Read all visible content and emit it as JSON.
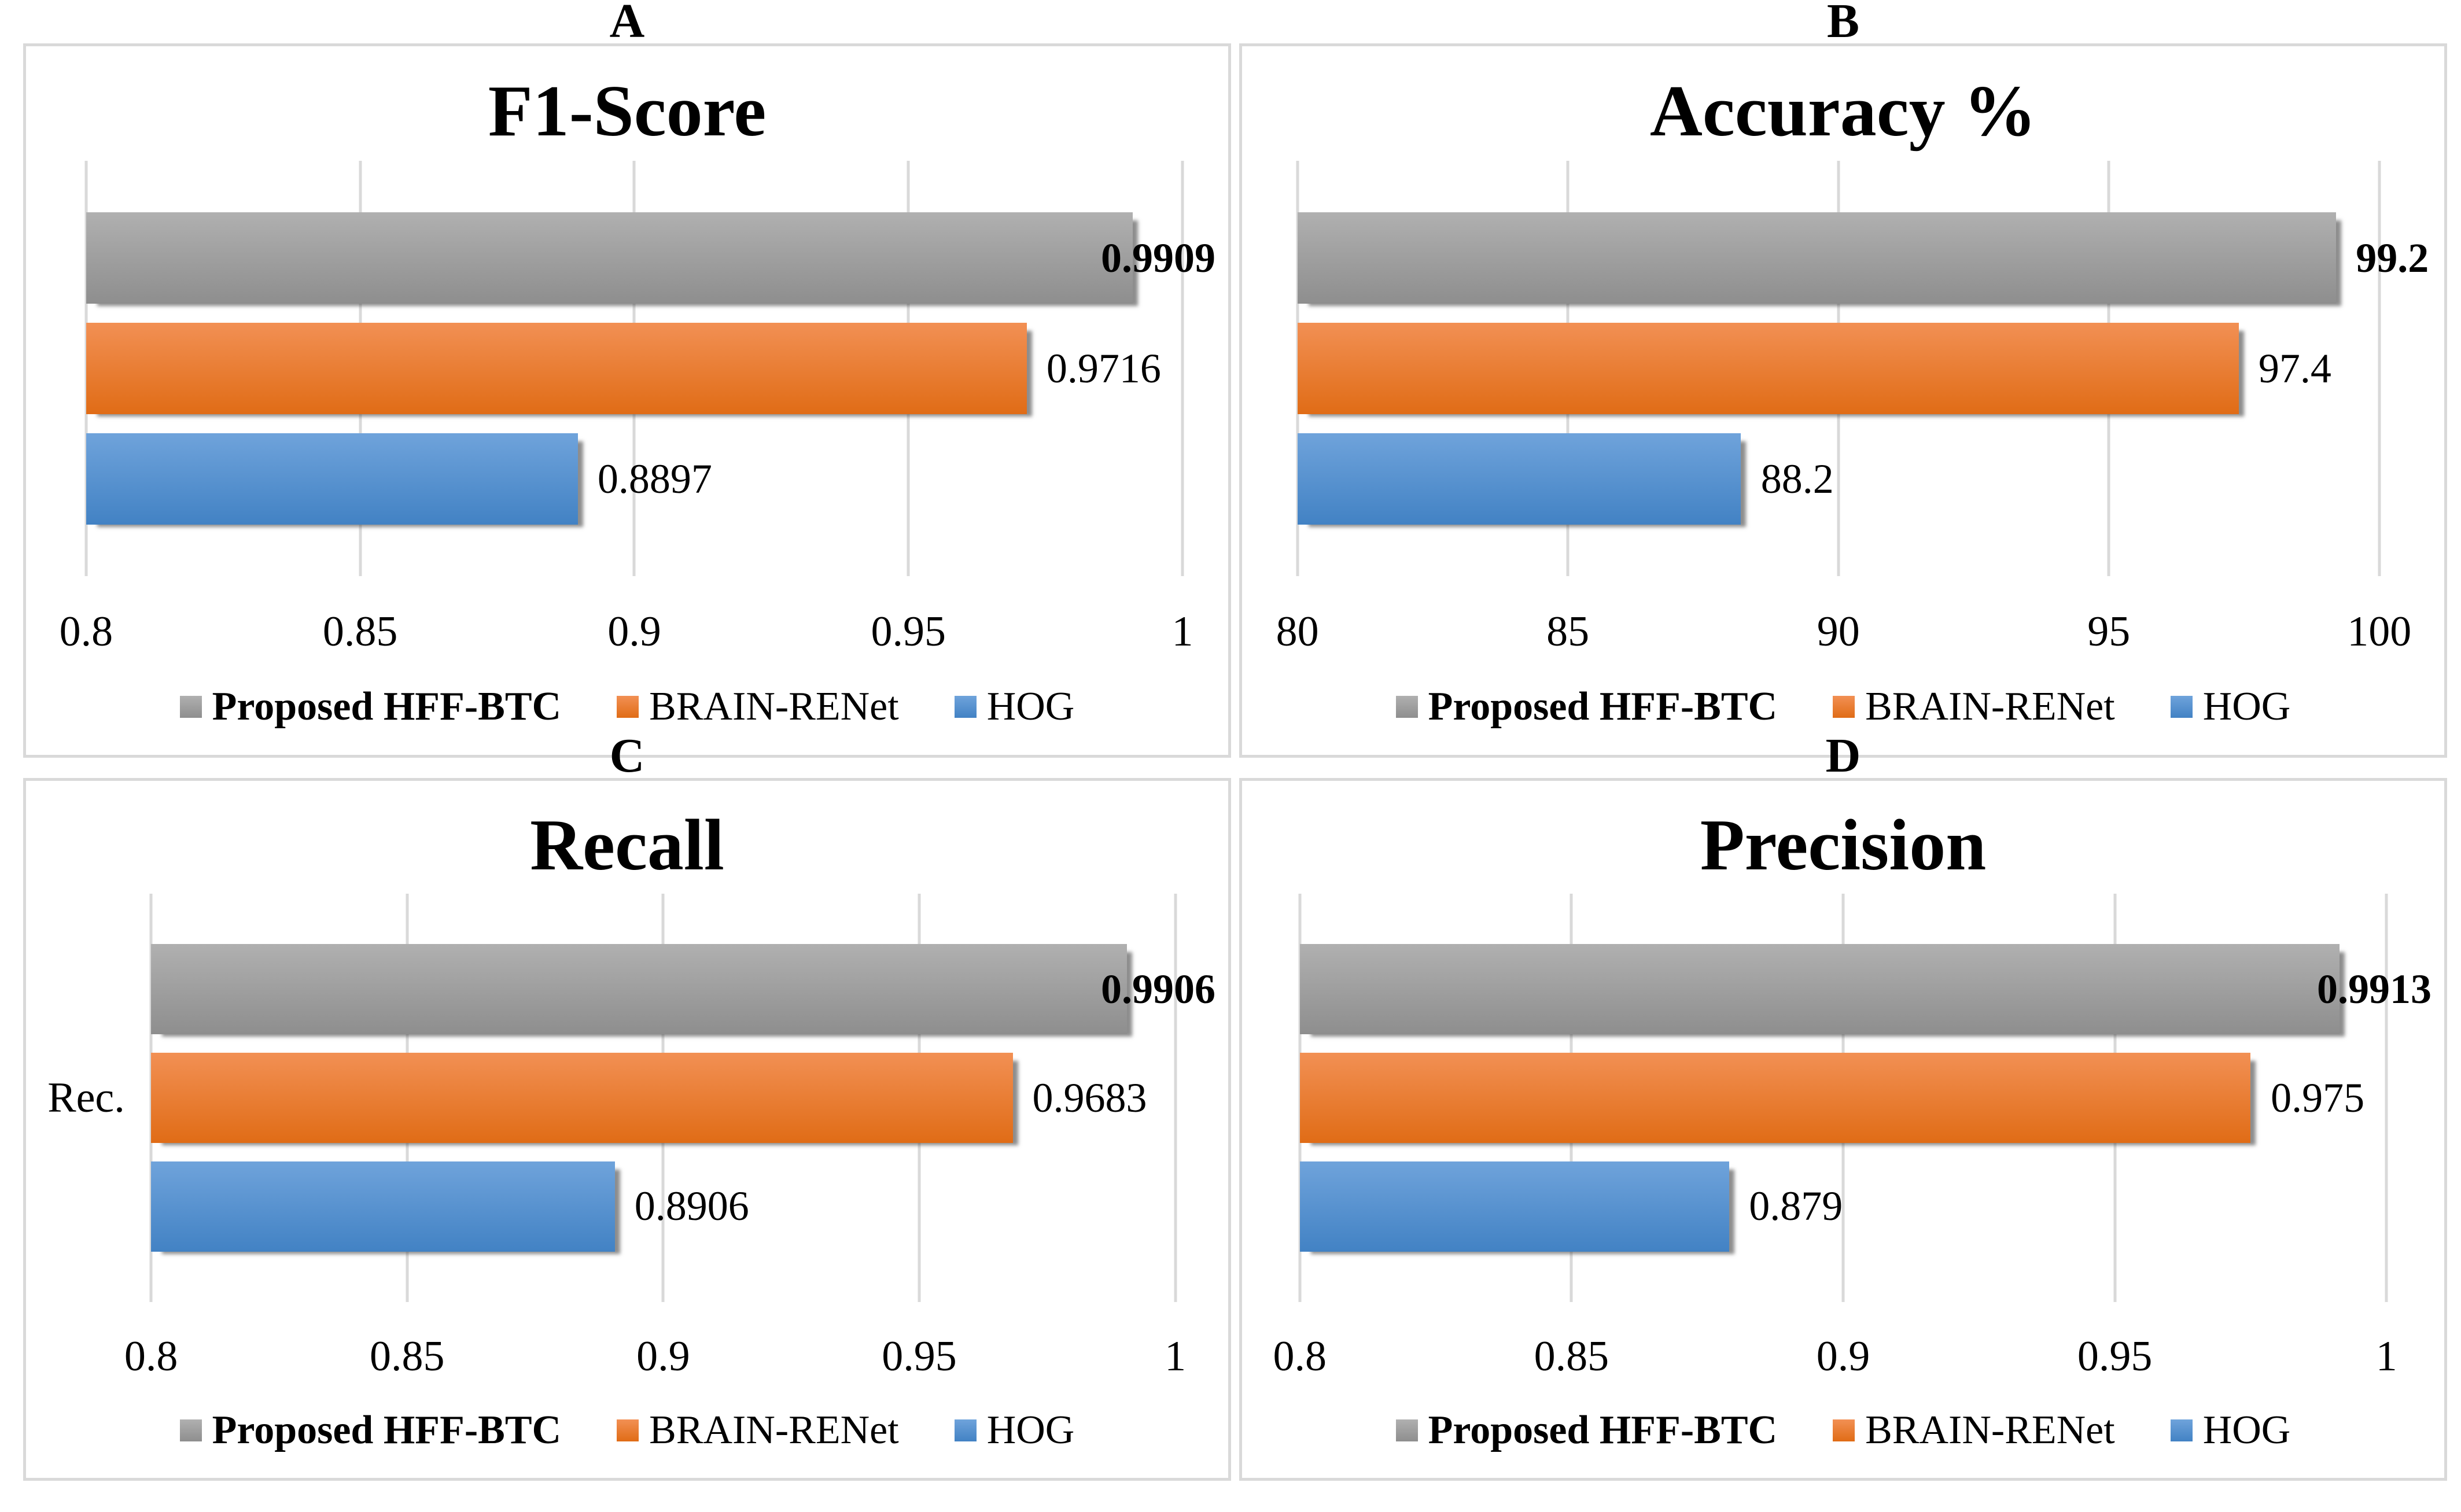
{
  "style": {
    "series": [
      {
        "name": "Proposed HFF-BTC",
        "color_top": "#b0b0b0",
        "color_bottom": "#8e8e8e"
      },
      {
        "name": "BRAIN-RENet",
        "color_top": "#f29054",
        "color_bottom": "#e06c16"
      },
      {
        "name": "HOG",
        "color_top": "#6fa3db",
        "color_bottom": "#4282c4"
      }
    ],
    "grid_color": "#d9d9d9",
    "panel_border_color": "#d9d9d9",
    "background": "#ffffff",
    "text_color": "#000000"
  },
  "chart_data": [
    {
      "panel_label": "A",
      "type": "bar",
      "orientation": "horizontal",
      "title": "F1-Score",
      "categories": [
        "Proposed HFF-BTC",
        "BRAIN-RENet",
        "HOG"
      ],
      "values": [
        0.9909,
        0.9716,
        0.8897
      ],
      "value_labels": [
        "0.9909",
        "0.9716",
        "0.8897"
      ],
      "value_label_bold": [
        true,
        false,
        false
      ],
      "xlim": [
        0.8,
        1
      ],
      "xticks": [
        "0.8",
        "0.85",
        "0.9",
        "0.95",
        "1"
      ],
      "xtick_values": [
        0.8,
        0.85,
        0.9,
        0.95,
        1
      ],
      "ylabel": "",
      "legend": [
        "Proposed HFF-BTC",
        "BRAIN-RENet",
        "HOG"
      ],
      "legend_position": "bottom",
      "grid": true
    },
    {
      "panel_label": "B",
      "type": "bar",
      "orientation": "horizontal",
      "title": "Accuracy %",
      "categories": [
        "Proposed HFF-BTC",
        "BRAIN-RENet",
        "HOG"
      ],
      "values": [
        99.2,
        97.4,
        88.2
      ],
      "value_labels": [
        "99.2",
        "97.4",
        "88.2"
      ],
      "value_label_bold": [
        true,
        false,
        false
      ],
      "xlim": [
        80,
        100
      ],
      "xticks": [
        "80",
        "85",
        "90",
        "95",
        "100"
      ],
      "xtick_values": [
        80,
        85,
        90,
        95,
        100
      ],
      "ylabel": "",
      "legend": [
        "Proposed HFF-BTC",
        "BRAIN-RENet",
        "HOG"
      ],
      "legend_position": "bottom",
      "grid": true
    },
    {
      "panel_label": "C",
      "type": "bar",
      "orientation": "horizontal",
      "title": "Recall",
      "categories": [
        "Proposed HFF-BTC",
        "BRAIN-RENet",
        "HOG"
      ],
      "values": [
        0.9906,
        0.9683,
        0.8906
      ],
      "value_labels": [
        "0.9906",
        "0.9683",
        "0.8906"
      ],
      "value_label_bold": [
        true,
        false,
        false
      ],
      "xlim": [
        0.8,
        1
      ],
      "xticks": [
        "0.8",
        "0.85",
        "0.9",
        "0.95",
        "1"
      ],
      "xtick_values": [
        0.8,
        0.85,
        0.9,
        0.95,
        1
      ],
      "ylabel": "Rec.",
      "legend": [
        "Proposed HFF-BTC",
        "BRAIN-RENet",
        "HOG"
      ],
      "legend_position": "bottom",
      "grid": true
    },
    {
      "panel_label": "D",
      "type": "bar",
      "orientation": "horizontal",
      "title": "Precision",
      "categories": [
        "Proposed HFF-BTC",
        "BRAIN-RENet",
        "HOG"
      ],
      "values": [
        0.9913,
        0.975,
        0.879
      ],
      "value_labels": [
        "0.9913",
        "0.975",
        "0.879"
      ],
      "value_label_bold": [
        true,
        false,
        false
      ],
      "xlim": [
        0.8,
        1
      ],
      "xticks": [
        "0.8",
        "0.85",
        "0.9",
        "0.95",
        "1"
      ],
      "xtick_values": [
        0.8,
        0.85,
        0.9,
        0.95,
        1
      ],
      "ylabel": "",
      "legend": [
        "Proposed HFF-BTC",
        "BRAIN-RENet",
        "HOG"
      ],
      "legend_position": "bottom",
      "grid": true
    }
  ]
}
